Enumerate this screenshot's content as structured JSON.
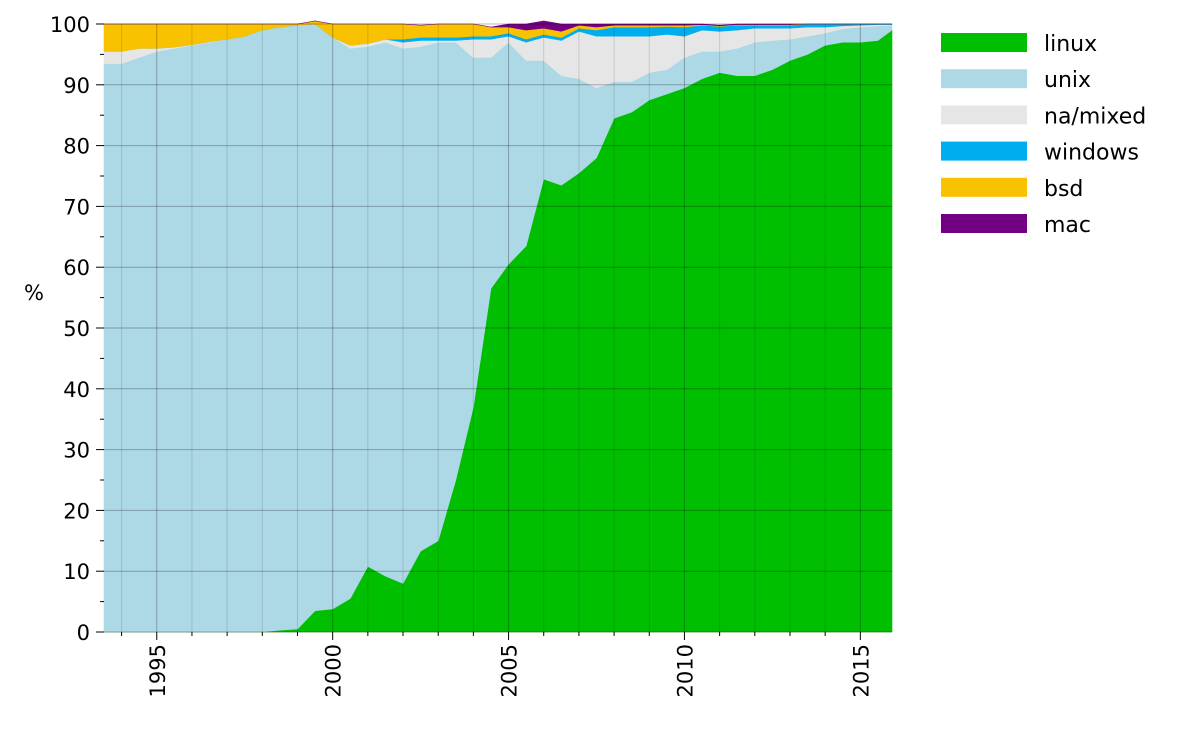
{
  "chart_data": {
    "type": "area",
    "stacked": true,
    "ylabel": "%",
    "xlabel": "",
    "xlim": [
      1993.5,
      2015.9
    ],
    "ylim": [
      0,
      100
    ],
    "y_ticks": [
      "0",
      "10",
      "20",
      "30",
      "40",
      "50",
      "60",
      "70",
      "80",
      "90",
      "100"
    ],
    "x_ticks": [
      "1995",
      "2000",
      "2005",
      "2010",
      "2015"
    ],
    "grid": true,
    "legend_position": "right",
    "x": [
      1993.5,
      1994,
      1994.5,
      1995,
      1995.5,
      1996,
      1996.5,
      1997,
      1997.5,
      1998,
      1998.5,
      1999,
      1999.5,
      2000,
      2000.5,
      2001,
      2001.5,
      2002,
      2002.5,
      2003,
      2003.5,
      2004,
      2004.5,
      2005,
      2005.5,
      2006,
      2006.5,
      2007,
      2007.5,
      2008,
      2008.5,
      2009,
      2009.5,
      2010,
      2010.5,
      2011,
      2011.5,
      2012,
      2012.5,
      2013,
      2013.5,
      2014,
      2014.5,
      2015,
      2015.5,
      2015.9
    ],
    "series": [
      {
        "name": "linux",
        "color": "#00bf00",
        "values": [
          0,
          0,
          0,
          0,
          0,
          0,
          0,
          0,
          0,
          0,
          0.3,
          0.5,
          3.5,
          3.8,
          5.5,
          10.8,
          9.2,
          8,
          13.3,
          15,
          25,
          37,
          56.5,
          60.5,
          63.5,
          74.5,
          73.5,
          75.5,
          78,
          84.5,
          85.5,
          87.5,
          88.5,
          89.5,
          91,
          92,
          91.5,
          91.5,
          92.5,
          94,
          95,
          96.5,
          97,
          97,
          97.3,
          99
        ]
      },
      {
        "name": "unix",
        "color": "#add8e6",
        "values": [
          93.5,
          93.5,
          94.5,
          95.5,
          96,
          96.5,
          97,
          97.5,
          98,
          99,
          99.2,
          99.3,
          96.5,
          94,
          90.5,
          85.5,
          87.8,
          88,
          83,
          82,
          72,
          57.5,
          38,
          36.5,
          30.5,
          19.5,
          18,
          15.5,
          11.5,
          6,
          5,
          4.5,
          4,
          5,
          4.5,
          3.5,
          4.5,
          5.5,
          4.8,
          3.5,
          3,
          2,
          2.2,
          2.5,
          2.4,
          0.8
        ]
      },
      {
        "name": "na/mixed",
        "color": "#e6e6e6",
        "values": [
          2,
          2,
          1.5,
          0.5,
          0.2,
          0.1,
          0.1,
          0,
          0,
          0,
          0,
          0,
          0,
          0,
          0.5,
          0.5,
          0.5,
          1,
          1,
          0.3,
          0.3,
          3,
          3,
          1,
          3,
          3.8,
          5.8,
          7.8,
          8.5,
          7.5,
          7.5,
          6,
          5.8,
          3.5,
          3.5,
          3.3,
          3,
          2.3,
          2,
          1.8,
          1.5,
          1,
          0.5,
          0.3,
          0.2,
          0.1
        ]
      },
      {
        "name": "windows",
        "color": "#00aeef",
        "values": [
          0,
          0,
          0,
          0,
          0,
          0,
          0,
          0,
          0,
          0,
          0,
          0,
          0,
          0,
          0,
          0,
          0,
          0.5,
          0.5,
          0.5,
          0.5,
          0.5,
          0.5,
          0.5,
          0.5,
          0.5,
          0.5,
          0.5,
          1,
          1.5,
          1.5,
          1.5,
          1.3,
          1.5,
          0.8,
          0.8,
          0.8,
          0.5,
          0.5,
          0.5,
          0.5,
          0.5,
          0.3,
          0.2,
          0.1,
          0.1
        ]
      },
      {
        "name": "bsd",
        "color": "#f8c200",
        "values": [
          4.5,
          4.5,
          4,
          4,
          3.8,
          3.4,
          2.9,
          2.5,
          2,
          1,
          0.5,
          0.2,
          0.5,
          2.2,
          3.5,
          3.2,
          2.5,
          2.5,
          2,
          2.2,
          2.2,
          2,
          1.5,
          1,
          1.5,
          1,
          1,
          0.5,
          0.5,
          0.3,
          0.3,
          0.3,
          0.2,
          0.3,
          0.1,
          0.1,
          0.1,
          0.1,
          0.1,
          0.1,
          0,
          0,
          0,
          0,
          0,
          0
        ]
      },
      {
        "name": "mac",
        "color": "#730083",
        "values": [
          0,
          0,
          0,
          0,
          0,
          0,
          0,
          0,
          0,
          0,
          0,
          0,
          0,
          0,
          0,
          0,
          0,
          0,
          0,
          0,
          0,
          0,
          0,
          0.5,
          1,
          1.2,
          1.2,
          0.2,
          0.5,
          0.2,
          0.2,
          0.2,
          0.2,
          0.2,
          0.1,
          0.1,
          0.1,
          0.1,
          0.1,
          0.1,
          0,
          0,
          0,
          0,
          0,
          0
        ]
      }
    ]
  }
}
